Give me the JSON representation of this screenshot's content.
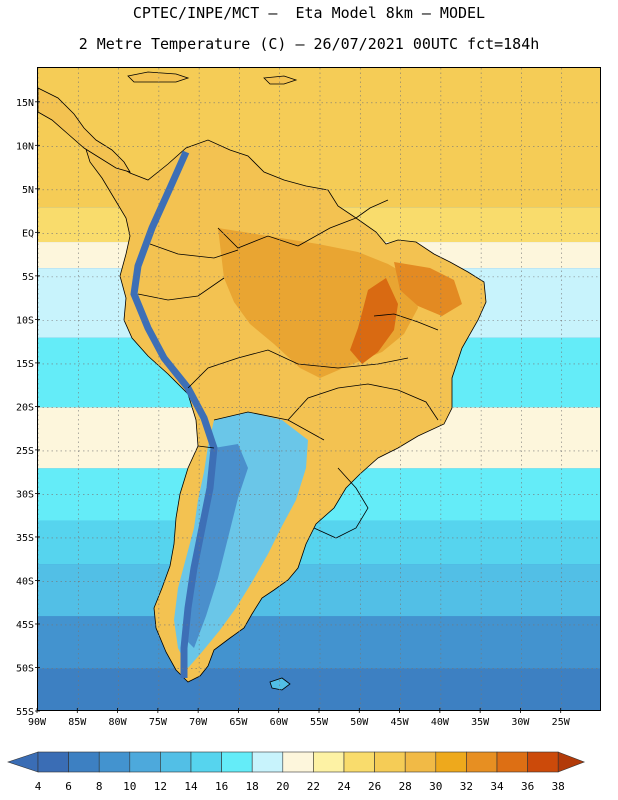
{
  "header": {
    "line1": "CPTEC/INPE/MCT –  Eta Model 8km – MODEL",
    "line2": "2 Metre Temperature (C) – 26/07/2021 00UTC fct=184h"
  },
  "map": {
    "lon_range": [
      -90,
      -20
    ],
    "lat_range": [
      -55,
      19
    ],
    "lon_ticks": [
      {
        "value": -90,
        "label": "90W"
      },
      {
        "value": -85,
        "label": "85W"
      },
      {
        "value": -80,
        "label": "80W"
      },
      {
        "value": -75,
        "label": "75W"
      },
      {
        "value": -70,
        "label": "70W"
      },
      {
        "value": -65,
        "label": "65W"
      },
      {
        "value": -60,
        "label": "60W"
      },
      {
        "value": -55,
        "label": "55W"
      },
      {
        "value": -50,
        "label": "50W"
      },
      {
        "value": -45,
        "label": "45W"
      },
      {
        "value": -40,
        "label": "40W"
      },
      {
        "value": -35,
        "label": "35W"
      },
      {
        "value": -30,
        "label": "30W"
      },
      {
        "value": -25,
        "label": "25W"
      }
    ],
    "lat_ticks": [
      {
        "value": 15,
        "label": "15N"
      },
      {
        "value": 10,
        "label": "10N"
      },
      {
        "value": 5,
        "label": "5N"
      },
      {
        "value": 0,
        "label": "EQ"
      },
      {
        "value": -5,
        "label": "5S"
      },
      {
        "value": -10,
        "label": "10S"
      },
      {
        "value": -15,
        "label": "15S"
      },
      {
        "value": -20,
        "label": "20S"
      },
      {
        "value": -25,
        "label": "25S"
      },
      {
        "value": -30,
        "label": "30S"
      },
      {
        "value": -35,
        "label": "35S"
      },
      {
        "value": -40,
        "label": "40S"
      },
      {
        "value": -45,
        "label": "45S"
      },
      {
        "value": -50,
        "label": "50S"
      },
      {
        "value": -55,
        "label": "55S"
      }
    ],
    "grid": "dotted",
    "ocean_bands": [
      {
        "lat_top": 19,
        "lat_bottom": 3,
        "temp": 27
      },
      {
        "lat_top": 3,
        "lat_bottom": -1,
        "temp": 25
      },
      {
        "lat_top": -1,
        "lat_bottom": -4,
        "temp": 21
      },
      {
        "lat_top": -4,
        "lat_bottom": -12,
        "temp": 18
      },
      {
        "lat_top": -12,
        "lat_bottom": -20,
        "temp": 16
      },
      {
        "lat_top": -20,
        "lat_bottom": -27,
        "temp": 20
      },
      {
        "lat_top": -27,
        "lat_bottom": -33,
        "temp": 17
      },
      {
        "lat_top": -33,
        "lat_bottom": -38,
        "temp": 14
      },
      {
        "lat_top": -38,
        "lat_bottom": -44,
        "temp": 12
      },
      {
        "lat_top": -44,
        "lat_bottom": -50,
        "temp": 9
      },
      {
        "lat_top": -50,
        "lat_bottom": -55,
        "temp": 7
      }
    ]
  },
  "colorbar": {
    "levels": [
      "4",
      "6",
      "8",
      "10",
      "12",
      "14",
      "16",
      "18",
      "20",
      "22",
      "24",
      "26",
      "28",
      "30",
      "32",
      "34",
      "36",
      "38"
    ],
    "colors": [
      "#3a6db5",
      "#3d80c2",
      "#4393cf",
      "#4da9dc",
      "#52bfe6",
      "#56d4ee",
      "#64ecf8",
      "#c8f3fc",
      "#fdf6dc",
      "#fdf2a4",
      "#f9dc6c",
      "#f5cc56",
      "#f1ba46",
      "#eea91c",
      "#e78f22",
      "#dd6f14",
      "#cc4a0a",
      "#b23a08"
    ]
  }
}
